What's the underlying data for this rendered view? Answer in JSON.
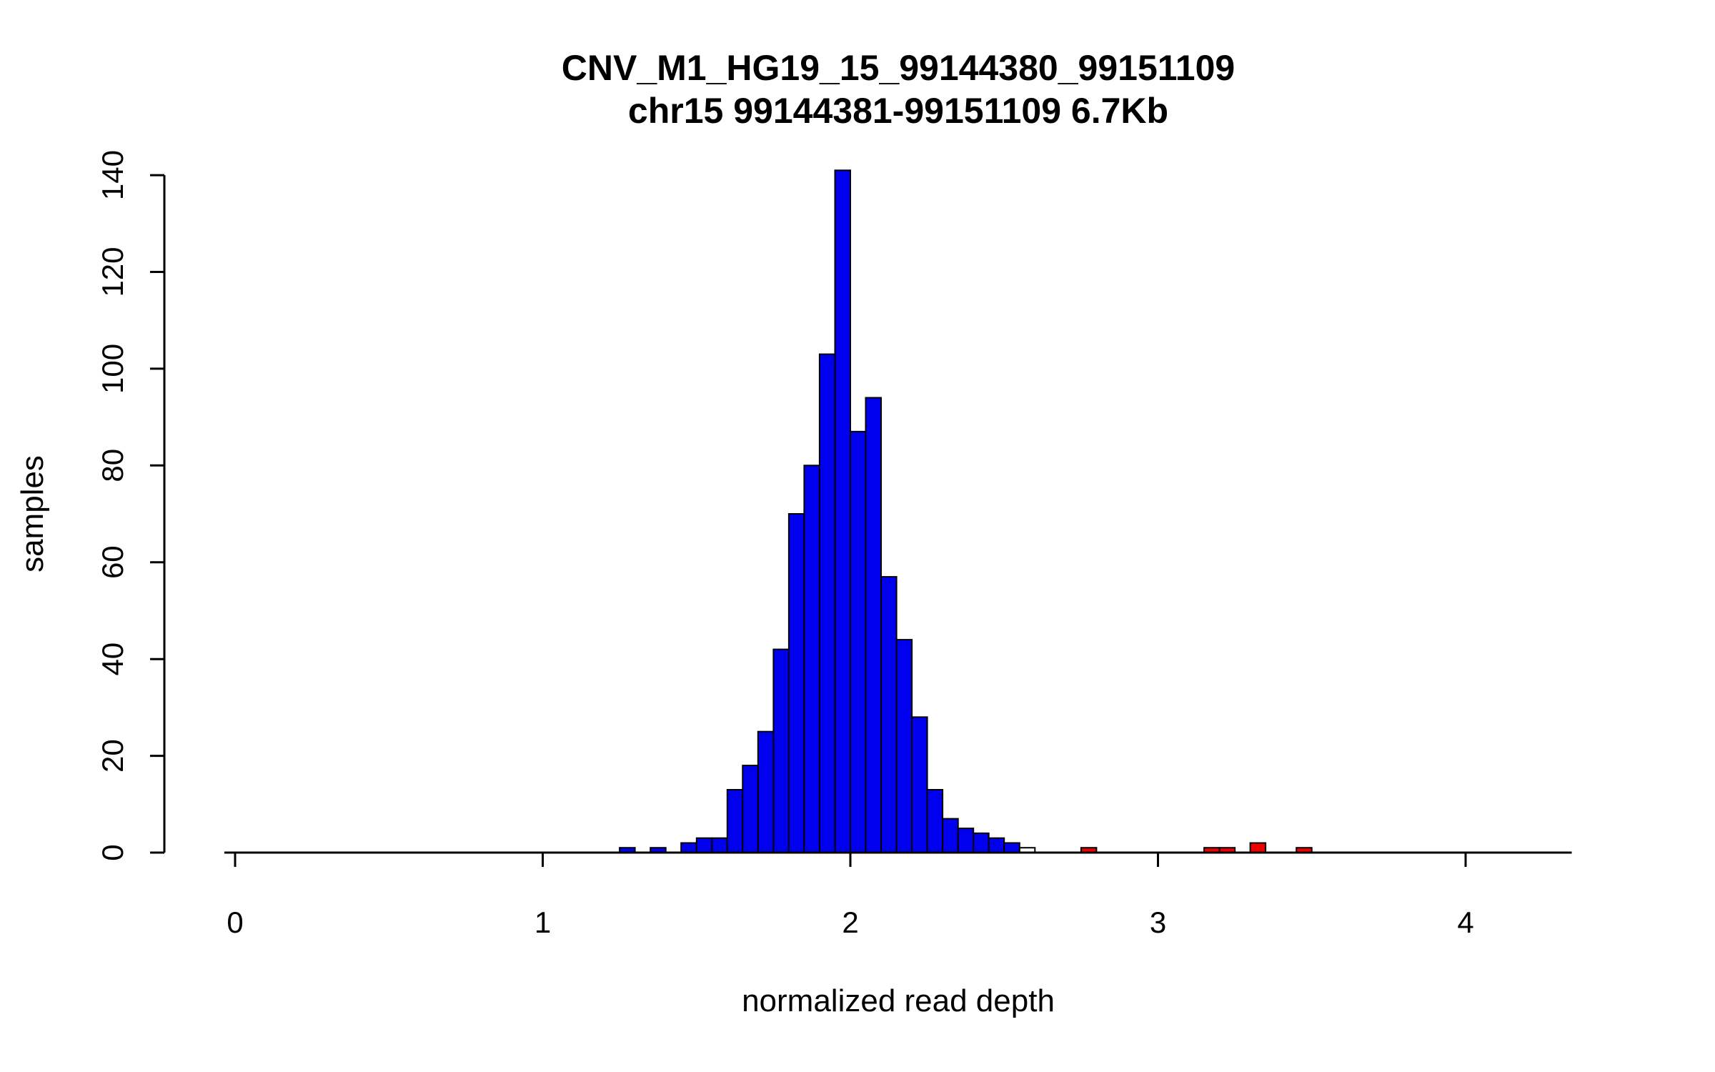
{
  "chart_data": {
    "type": "bar",
    "subtype": "histogram",
    "title": "CNV_M1_HG19_15_99144380_99151109",
    "subtitle": "chr15 99144381-99151109 6.7Kb",
    "xlabel": "normalized read depth",
    "ylabel": "samples",
    "x_ticks": [
      0,
      1,
      2,
      3,
      4
    ],
    "y_ticks": [
      0,
      20,
      40,
      60,
      80,
      100,
      120,
      140
    ],
    "xlim": [
      -0.035,
      4.345
    ],
    "ylim": [
      0,
      141
    ],
    "grid": false,
    "legend": "none",
    "bin_width": 0.05,
    "colors": {
      "normal": "#0000EE",
      "outlier": "#EE0000",
      "empty": "#FFFFFF",
      "stroke": "#000000"
    },
    "bins": [
      {
        "x": 1.25,
        "count": 1,
        "color": "normal"
      },
      {
        "x": 1.35,
        "count": 1,
        "color": "normal"
      },
      {
        "x": 1.45,
        "count": 2,
        "color": "normal"
      },
      {
        "x": 1.5,
        "count": 3,
        "color": "normal"
      },
      {
        "x": 1.55,
        "count": 3,
        "color": "normal"
      },
      {
        "x": 1.6,
        "count": 13,
        "color": "normal"
      },
      {
        "x": 1.65,
        "count": 18,
        "color": "normal"
      },
      {
        "x": 1.7,
        "count": 25,
        "color": "normal"
      },
      {
        "x": 1.75,
        "count": 42,
        "color": "normal"
      },
      {
        "x": 1.8,
        "count": 70,
        "color": "normal"
      },
      {
        "x": 1.85,
        "count": 80,
        "color": "normal"
      },
      {
        "x": 1.9,
        "count": 103,
        "color": "normal"
      },
      {
        "x": 1.95,
        "count": 141,
        "color": "normal"
      },
      {
        "x": 2.0,
        "count": 87,
        "color": "normal"
      },
      {
        "x": 2.05,
        "count": 94,
        "color": "normal"
      },
      {
        "x": 2.1,
        "count": 57,
        "color": "normal"
      },
      {
        "x": 2.15,
        "count": 44,
        "color": "normal"
      },
      {
        "x": 2.2,
        "count": 28,
        "color": "normal"
      },
      {
        "x": 2.25,
        "count": 13,
        "color": "normal"
      },
      {
        "x": 2.3,
        "count": 7,
        "color": "normal"
      },
      {
        "x": 2.35,
        "count": 5,
        "color": "normal"
      },
      {
        "x": 2.4,
        "count": 4,
        "color": "normal"
      },
      {
        "x": 2.45,
        "count": 3,
        "color": "normal"
      },
      {
        "x": 2.5,
        "count": 2,
        "color": "normal"
      },
      {
        "x": 2.55,
        "count": 1,
        "color": "empty"
      },
      {
        "x": 2.75,
        "count": 1,
        "color": "outlier"
      },
      {
        "x": 3.15,
        "count": 1,
        "color": "outlier"
      },
      {
        "x": 3.2,
        "count": 1,
        "color": "outlier"
      },
      {
        "x": 3.3,
        "count": 2,
        "color": "outlier"
      },
      {
        "x": 3.45,
        "count": 1,
        "color": "outlier"
      }
    ]
  }
}
